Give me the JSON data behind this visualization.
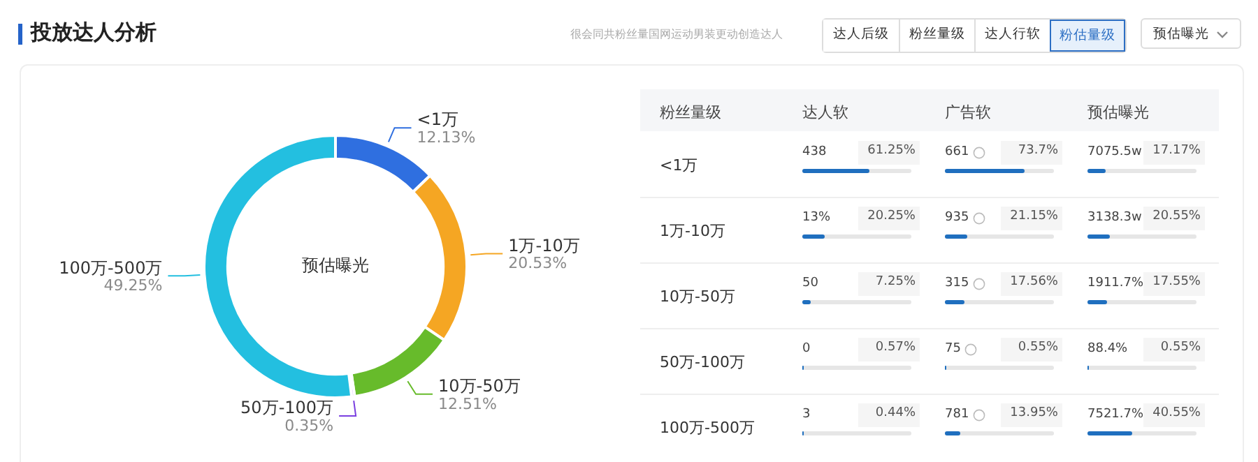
{
  "chart_data": [
    {
      "type": "donut",
      "title": "投放达人分析",
      "subtitle": "很会同共粉丝量国网运动男装更动创造达人",
      "annotations": [
        "预估曝光",
        "达人后级",
        "粉丝量级",
        "达人行软",
        "粉估量级",
        "预估曝光"
      ],
      "categories": [
        "<1万",
        "1万-10万",
        "10万-50万",
        "50万-100万",
        "100万-500万"
      ],
      "values": [
        12.13,
        20.53,
        12.51,
        0.35,
        49.25
      ],
      "value_labels": [
        "12.13%",
        "20.53%",
        "12.51%",
        "0.35%",
        "49.25%"
      ],
      "colors": [
        "#2f6fe0",
        "#f5a623",
        "#67bb2b",
        "#7a3fe0",
        "#23bfe0"
      ]
    },
    {
      "type": "other",
      "ylabel": "粉丝量级",
      "categories": [
        "<1万",
        "1万-10万",
        "10万-50万",
        "50万-100万",
        "100万-500万"
      ],
      "annotations": [
        "438",
        "661",
        "7075.5w",
        "13%",
        "935",
        "3138.3w",
        "50",
        "315",
        "1911.7%",
        "0",
        "75",
        "88.4%",
        "3",
        "781",
        "7521.7%"
      ],
      "series": [
        {
          "name": "达人软",
          "values": [
            61.25,
            20.25,
            7.25,
            0.57,
            0.44
          ],
          "value_labels": [
            "61.25%",
            "20.25%",
            "7.25%",
            "0.57%",
            "0.44%"
          ]
        },
        {
          "name": "广告软",
          "values": [
            73.7,
            21.15,
            17.56,
            0.55,
            13.95
          ],
          "value_labels": [
            "73.7%",
            "21.15%",
            "17.56%",
            "0.55%",
            "13.95%"
          ]
        },
        {
          "name": "预估曝光",
          "values": [
            17.17,
            20.55,
            17.55,
            0.55,
            40.55
          ],
          "value_labels": [
            "17.17%",
            "20.55%",
            "17.55%",
            "0.55%",
            "40.55%"
          ]
        }
      ]
    }
  ]
}
